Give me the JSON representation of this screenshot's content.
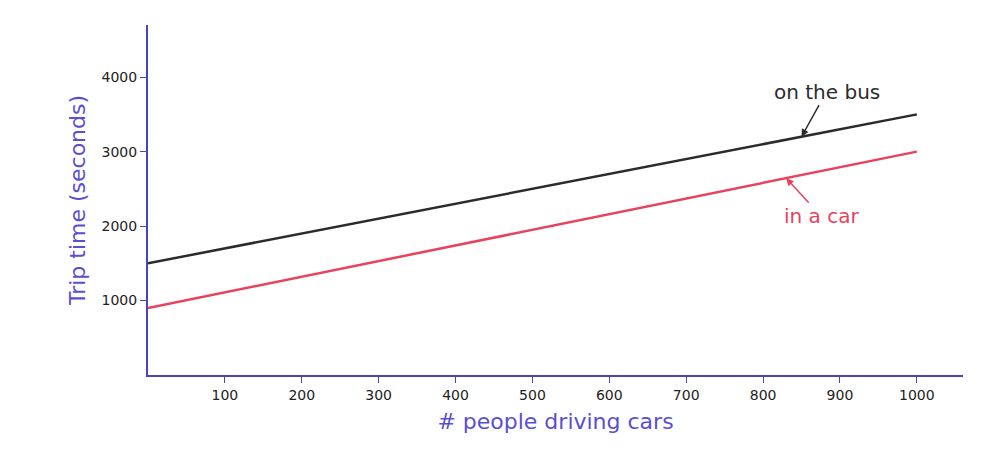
{
  "chart_data": {
    "type": "line",
    "x_label": "# people driving cars",
    "y_label": "Trip time (seconds)",
    "x": [
      0,
      1000
    ],
    "series": [
      {
        "name": "on the bus",
        "color": "#2b2b2b",
        "values": [
          1500,
          3500
        ]
      },
      {
        "name": "in a car",
        "color": "#e8425e",
        "values": [
          900,
          3000
        ]
      }
    ],
    "xlim": [
      0,
      1060
    ],
    "ylim": [
      0,
      4700
    ],
    "xticks": [
      100,
      200,
      300,
      400,
      500,
      600,
      700,
      800,
      900,
      1000
    ],
    "yticks": [
      1000,
      2000,
      3000,
      4000
    ],
    "grid": false,
    "annotations": [
      {
        "text": "on the bus",
        "x": 850,
        "y": 3200,
        "color": "#2b2b2b"
      },
      {
        "text": "in a car",
        "x": 830,
        "y": 2643,
        "color": "#e8425e"
      }
    ]
  }
}
